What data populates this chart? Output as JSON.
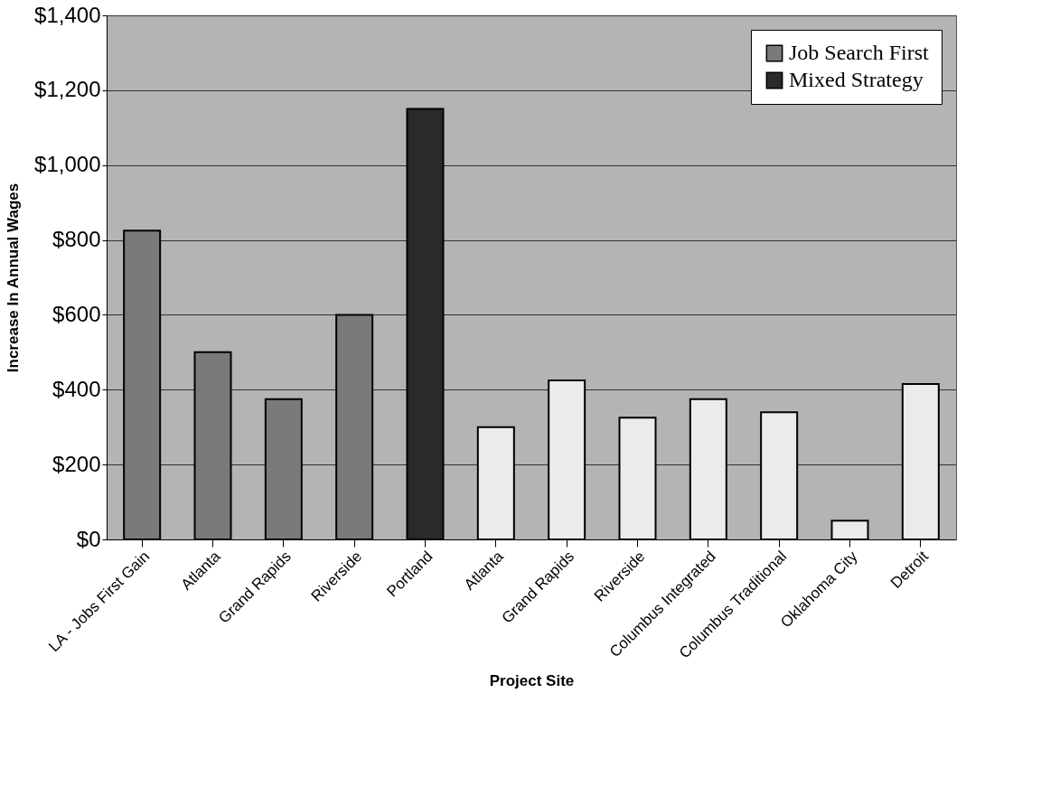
{
  "chart_data": {
    "type": "bar",
    "xlabel": "Project Site",
    "ylabel": "Increase In Annual Wages",
    "categories": [
      "LA - Jobs First Gain",
      "Atlanta",
      "Grand Rapids",
      "Riverside",
      "Portland",
      "Atlanta",
      "Grand Rapids",
      "Riverside",
      "Columbus Integrated",
      "Columbus Traditional",
      "Oklahoma City",
      "Detroit"
    ],
    "series": [
      {
        "name": "Job Search First",
        "color": "#7a7a7a",
        "values": [
          825,
          500,
          375,
          600,
          null,
          null,
          null,
          null,
          null,
          null,
          null,
          null
        ]
      },
      {
        "name": "Mixed Strategy",
        "color": "#2a2a2a",
        "values": [
          null,
          null,
          null,
          null,
          1150,
          null,
          null,
          null,
          null,
          null,
          null,
          null
        ]
      },
      {
        "color": "#ebebeb",
        "values": [
          null,
          null,
          null,
          null,
          null,
          300,
          425,
          325,
          375,
          340,
          50,
          415
        ]
      }
    ],
    "ylim": [
      0,
      1400
    ],
    "yticks": [
      {
        "value": 0,
        "label": "$0"
      },
      {
        "value": 200,
        "label": "$200"
      },
      {
        "value": 400,
        "label": "$400"
      },
      {
        "value": 600,
        "label": "$600"
      },
      {
        "value": 800,
        "label": "$800"
      },
      {
        "value": 1000,
        "label": "$1,000"
      },
      {
        "value": 1200,
        "label": "$1,200"
      },
      {
        "value": 1400,
        "label": "$1,400"
      }
    ],
    "grid": "y",
    "legend": "top right"
  }
}
